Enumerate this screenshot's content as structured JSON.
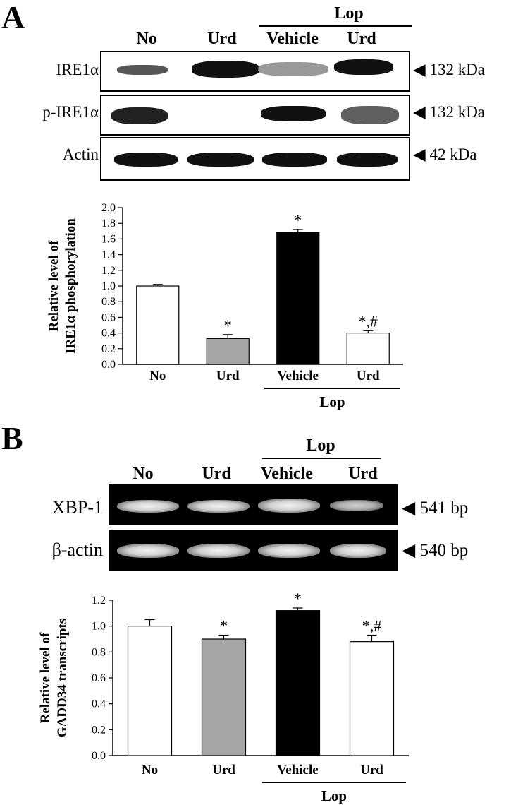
{
  "panel_a": {
    "letter": "A",
    "group_label": "Lop",
    "lanes": [
      "No",
      "Urd",
      "Vehicle",
      "Urd"
    ],
    "rows": [
      {
        "label": "IRE1α",
        "size": "◀ 132 kDa"
      },
      {
        "label": "p-IRE1α",
        "size": "◀ 132 kDa"
      },
      {
        "label": "Actin",
        "size": "◀ 42 kDa"
      }
    ]
  },
  "panel_b": {
    "letter": "B",
    "group_label": "Lop",
    "lanes": [
      "No",
      "Urd",
      "Vehicle",
      "Urd"
    ],
    "rows": [
      {
        "label": "XBP-1",
        "size": "◀ 541 bp"
      },
      {
        "label": "β-actin",
        "size": "◀ 540 bp"
      }
    ]
  },
  "chart_data": [
    {
      "type": "bar",
      "categories": [
        "No",
        "Urd",
        "Vehicle",
        "Urd"
      ],
      "group_label": "Lop",
      "values": [
        1.0,
        0.33,
        1.68,
        0.4
      ],
      "errors": [
        0.02,
        0.05,
        0.04,
        0.03
      ],
      "annotations": [
        "",
        "*",
        "*",
        "*,#"
      ],
      "bar_colors": [
        "#ffffff",
        "#a6a6a6",
        "#000000",
        "#ffffff"
      ],
      "ylabel_line1": "Relative level of",
      "ylabel_line2": "IRE1α phosphorylation",
      "ylim": [
        0,
        2.0
      ],
      "yticks": [
        "0.0",
        "0.2",
        "0.4",
        "0.6",
        "0.8",
        "1.0",
        "1.2",
        "1.4",
        "1.6",
        "1.8",
        "2.0"
      ],
      "grid": false
    },
    {
      "type": "bar",
      "categories": [
        "No",
        "Urd",
        "Vehicle",
        "Urd"
      ],
      "group_label": "Lop",
      "values": [
        1.0,
        0.9,
        1.12,
        0.88
      ],
      "errors": [
        0.05,
        0.03,
        0.02,
        0.05
      ],
      "annotations": [
        "",
        "*",
        "*",
        "*,#"
      ],
      "bar_colors": [
        "#ffffff",
        "#a6a6a6",
        "#000000",
        "#ffffff"
      ],
      "ylabel_line1": "Relative level of",
      "ylabel_line2": "GADD34 transcripts",
      "ylim": [
        0,
        1.2
      ],
      "yticks": [
        "0.0",
        "0.2",
        "0.4",
        "0.6",
        "0.8",
        "1.0",
        "1.2"
      ],
      "grid": false
    }
  ]
}
